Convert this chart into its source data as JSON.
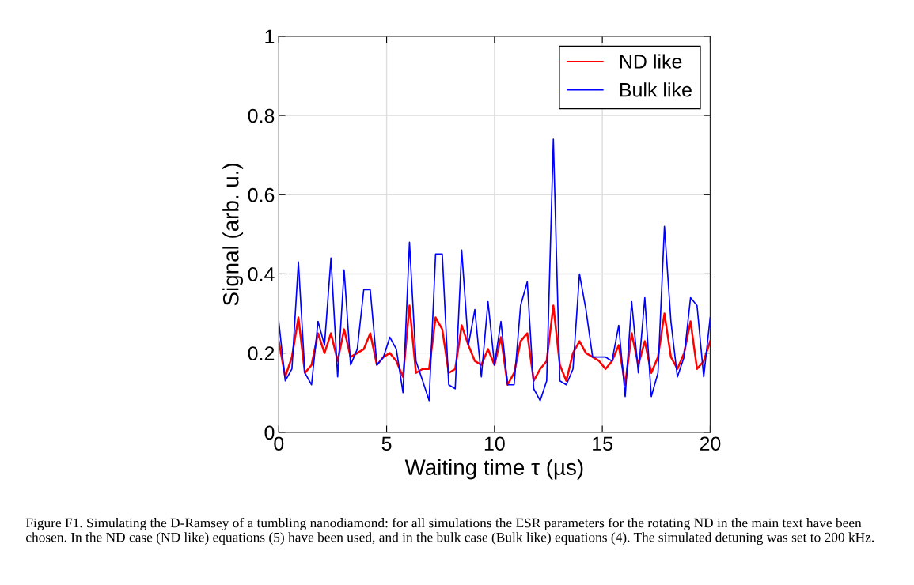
{
  "chart_data": {
    "type": "line",
    "xlabel": "Waiting time τ (µs)",
    "ylabel": "Signal (arb. u.)",
    "x": [
      0,
      0.3,
      0.61,
      0.91,
      1.21,
      1.52,
      1.82,
      2.12,
      2.42,
      2.73,
      3.03,
      3.33,
      3.64,
      3.94,
      4.24,
      4.55,
      4.85,
      5.15,
      5.45,
      5.76,
      6.06,
      6.36,
      6.67,
      6.97,
      7.27,
      7.58,
      7.88,
      8.18,
      8.48,
      8.79,
      9.09,
      9.39,
      9.7,
      10,
      10.3,
      10.61,
      10.91,
      11.21,
      11.52,
      11.82,
      12.12,
      12.42,
      12.73,
      13.03,
      13.33,
      13.64,
      13.94,
      14.24,
      14.55,
      14.85,
      15.15,
      15.45,
      15.76,
      16.06,
      16.36,
      16.67,
      16.97,
      17.27,
      17.58,
      17.88,
      18.18,
      18.48,
      18.79,
      19.09,
      19.39,
      19.7,
      20
    ],
    "series": [
      {
        "name": "ND like",
        "color": "#ff0000",
        "values": [
          0.23,
          0.14,
          0.19,
          0.29,
          0.15,
          0.17,
          0.25,
          0.2,
          0.25,
          0.18,
          0.26,
          0.19,
          0.2,
          0.21,
          0.25,
          0.17,
          0.19,
          0.2,
          0.18,
          0.14,
          0.32,
          0.15,
          0.16,
          0.16,
          0.29,
          0.26,
          0.15,
          0.16,
          0.27,
          0.22,
          0.18,
          0.17,
          0.21,
          0.17,
          0.24,
          0.12,
          0.15,
          0.23,
          0.25,
          0.13,
          0.16,
          0.18,
          0.32,
          0.17,
          0.13,
          0.2,
          0.23,
          0.2,
          0.19,
          0.18,
          0.16,
          0.18,
          0.22,
          0.12,
          0.25,
          0.17,
          0.23,
          0.15,
          0.19,
          0.3,
          0.19,
          0.16,
          0.2,
          0.28,
          0.16,
          0.18,
          0.23
        ]
      },
      {
        "name": "Bulk like",
        "color": "#0000ff",
        "values": [
          0.28,
          0.13,
          0.16,
          0.43,
          0.15,
          0.12,
          0.28,
          0.22,
          0.44,
          0.14,
          0.41,
          0.17,
          0.21,
          0.36,
          0.36,
          0.17,
          0.19,
          0.24,
          0.21,
          0.1,
          0.48,
          0.18,
          0.13,
          0.08,
          0.45,
          0.45,
          0.12,
          0.11,
          0.46,
          0.22,
          0.31,
          0.14,
          0.33,
          0.17,
          0.28,
          0.12,
          0.12,
          0.32,
          0.38,
          0.11,
          0.08,
          0.13,
          0.74,
          0.13,
          0.12,
          0.16,
          0.4,
          0.31,
          0.19,
          0.19,
          0.19,
          0.18,
          0.27,
          0.09,
          0.33,
          0.15,
          0.34,
          0.09,
          0.15,
          0.52,
          0.28,
          0.14,
          0.19,
          0.34,
          0.32,
          0.14,
          0.29
        ]
      }
    ],
    "xlim": [
      0,
      20
    ],
    "xticks": [
      0,
      5,
      10,
      15,
      20
    ],
    "ylim": [
      0,
      1
    ],
    "yticks": [
      0,
      0.2,
      0.4,
      0.6,
      0.8,
      1
    ],
    "grid": true,
    "legend": "top right",
    "marker": "none",
    "line_style": "solid",
    "annotations": [
      "Figure F1. Simulating the D-Ramsey of a tumbling nanodiamond: for all simulations the ESR parameters for the rotating ND in the main text have been chosen. In the ND case (ND like) equations (5) have been used, and in the bulk case (Bulk like) equations (4). The simulated detuning was set to 200 kHz."
    ]
  }
}
